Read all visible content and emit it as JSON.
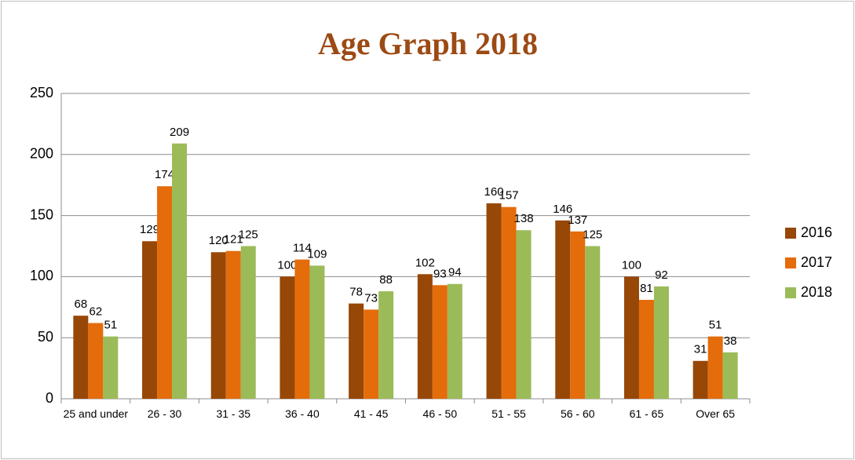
{
  "chart_data": {
    "type": "bar",
    "title": "Age Graph 2018",
    "categories": [
      "25 and under",
      "26 - 30",
      "31 - 35",
      "36 - 40",
      "41 - 45",
      "46 - 50",
      "51 - 55",
      "56 - 60",
      "61 - 65",
      "Over 65"
    ],
    "series": [
      {
        "name": "2016",
        "color": "#974706",
        "values": [
          68,
          129,
          120,
          100,
          78,
          102,
          160,
          146,
          100,
          31
        ]
      },
      {
        "name": "2017",
        "color": "#e46c0a",
        "values": [
          62,
          174,
          121,
          114,
          73,
          93,
          157,
          137,
          81,
          51
        ]
      },
      {
        "name": "2018",
        "color": "#9bbb59",
        "values": [
          51,
          209,
          125,
          109,
          88,
          94,
          138,
          125,
          92,
          38
        ]
      }
    ],
    "ylim": [
      0,
      250
    ],
    "yticks": [
      0,
      50,
      100,
      150,
      200,
      250
    ],
    "grid": true,
    "legend": "right"
  }
}
